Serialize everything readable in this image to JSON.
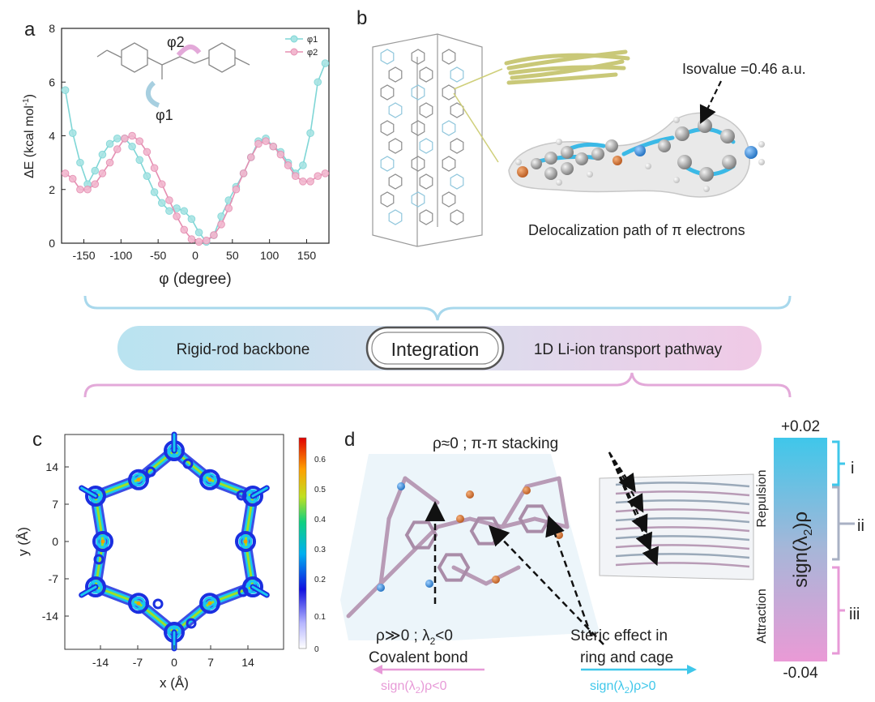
{
  "panel_labels": {
    "a": "a",
    "b": "b",
    "c": "c",
    "d": "d"
  },
  "chart_data": {
    "type": "line",
    "xlabel": "φ (degree)",
    "ylabel": "ΔE (kcal mol",
    "ylabel_sup": "-1",
    "ylabel_close": ")",
    "xlim": [
      -180,
      180
    ],
    "ylim": [
      0,
      8
    ],
    "xticks": [
      -150,
      -100,
      -50,
      0,
      50,
      100,
      150
    ],
    "yticks": [
      0,
      2,
      4,
      6,
      8
    ],
    "legend_position": "top-right",
    "series": [
      {
        "name": "φ1",
        "color": "#7fd6d6",
        "x": [
          -175,
          -165,
          -155,
          -145,
          -135,
          -125,
          -115,
          -105,
          -95,
          -85,
          -75,
          -65,
          -55,
          -45,
          -35,
          -25,
          -15,
          -5,
          5,
          15,
          25,
          35,
          45,
          55,
          65,
          75,
          85,
          95,
          105,
          115,
          125,
          135,
          145,
          155,
          165,
          175
        ],
        "y": [
          5.7,
          4.1,
          3.0,
          2.2,
          2.7,
          3.3,
          3.7,
          3.9,
          3.9,
          3.6,
          3.1,
          2.5,
          1.9,
          1.5,
          1.2,
          1.3,
          1.2,
          0.9,
          0.4,
          0.05,
          0.3,
          1.0,
          1.6,
          2.1,
          2.6,
          3.2,
          3.8,
          3.9,
          3.6,
          3.4,
          3.0,
          2.6,
          2.9,
          4.1,
          6.0,
          6.7
        ]
      },
      {
        "name": "φ2",
        "color": "#e58fb2",
        "x": [
          -175,
          -165,
          -155,
          -145,
          -135,
          -125,
          -115,
          -105,
          -95,
          -85,
          -75,
          -65,
          -55,
          -45,
          -35,
          -25,
          -15,
          -5,
          5,
          15,
          25,
          35,
          45,
          55,
          65,
          75,
          85,
          95,
          105,
          115,
          125,
          135,
          145,
          155,
          165,
          175
        ],
        "y": [
          2.6,
          2.4,
          2.0,
          2.0,
          2.2,
          2.6,
          3.0,
          3.5,
          3.9,
          4.0,
          3.8,
          3.4,
          2.8,
          2.2,
          1.6,
          1.0,
          0.5,
          0.15,
          0.05,
          0.1,
          0.3,
          0.7,
          1.3,
          2.0,
          2.6,
          3.2,
          3.7,
          3.8,
          3.6,
          3.3,
          2.9,
          2.5,
          2.3,
          2.3,
          2.5,
          2.6
        ]
      }
    ]
  },
  "panel_a": {
    "phi1_label": "φ1",
    "phi2_label": "φ2"
  },
  "panel_b": {
    "isovalue": "Isovalue =0.46  a.u.",
    "caption": "Delocalization path of π electrons"
  },
  "integration": {
    "left": "Rigid-rod backbone",
    "center": "Integration",
    "right": "1D Li-ion transport pathway"
  },
  "panel_c": {
    "xlabel": "x (Å)",
    "ylabel": "y (Å)",
    "xticks": [
      "-14",
      "-7",
      "0",
      "7",
      "14"
    ],
    "yticks": [
      "14",
      "7",
      "0",
      "-7",
      "-14"
    ],
    "colorbar_ticks": [
      "0.6",
      "0.5",
      "0.4",
      "0.3",
      "0.2",
      "0.1",
      "0"
    ]
  },
  "panel_d": {
    "stacking": "ρ≈0 ; π-π stacking",
    "covalent_line1": "ρ≫0 ; λ",
    "covalent_sub": "2",
    "covalent_line1_end": "<0",
    "covalent_line2": "Covalent bond",
    "steric_line1": "Steric effect in",
    "steric_line2": "ring and cage",
    "sign_neg_a": "sign(λ",
    "sign_neg_sub": "2",
    "sign_neg_b": ")ρ<0",
    "sign_pos_a": "sign(λ",
    "sign_pos_sub": "2",
    "sign_pos_b": ")ρ>0"
  },
  "scale_bar": {
    "top": "+0.02",
    "bottom": "-0.04",
    "label_a": "sign(λ",
    "label_sub": "2",
    "label_b": ")ρ",
    "repulsion": "Repulsion",
    "attraction": "Attraction",
    "region_i": "i",
    "region_ii": "ii",
    "region_iii": "iii",
    "top_color": "#3fc7ea",
    "bottom_color": "#e79ad7"
  }
}
